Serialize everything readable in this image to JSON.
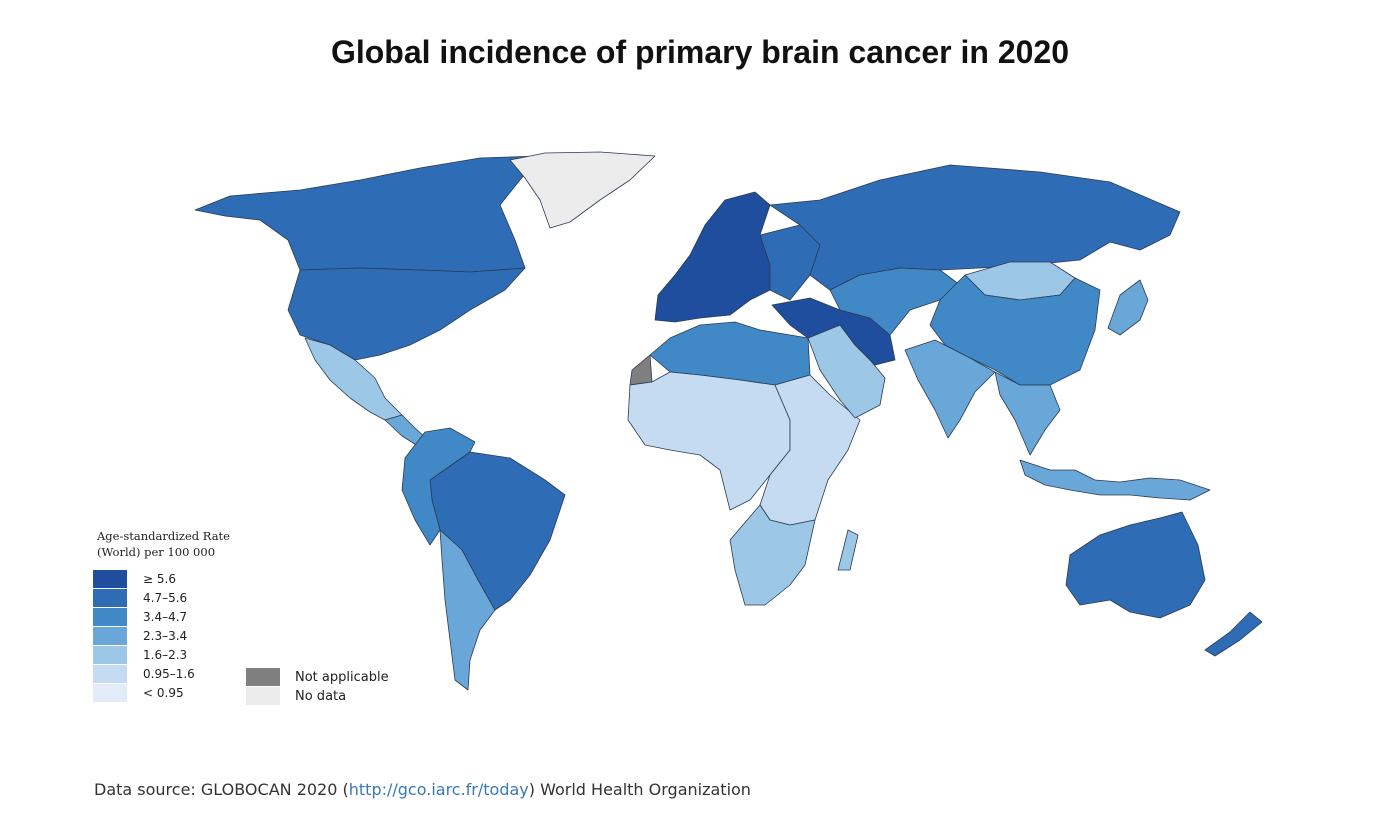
{
  "title": "Global incidence of primary brain cancer in 2020",
  "legend": {
    "title_line1": "Age-standardized Rate",
    "title_line2": "(World) per 100 000",
    "classes": [
      {
        "label": "≥ 5.6",
        "color": "#1f4e9e"
      },
      {
        "label": "4.7–5.6",
        "color": "#2e6db5"
      },
      {
        "label": "3.4–4.7",
        "color": "#4189c6"
      },
      {
        "label": "2.3–3.4",
        "color": "#69a7d8"
      },
      {
        "label": "1.6–2.3",
        "color": "#9dc7e6"
      },
      {
        "label": "0.95–1.6",
        "color": "#c5dbf1"
      },
      {
        "label": "< 0.95",
        "color": "#e2ecf8"
      }
    ],
    "not_applicable": {
      "label": "Not applicable",
      "color": "#7f7f7f"
    },
    "no_data": {
      "label": "No data",
      "color": "#ececec"
    }
  },
  "footer": {
    "prefix": "Data source: GLOBOCAN 2020 (",
    "link": "http://gco.iarc.fr/today",
    "suffix": ") World Health Organization"
  },
  "regions": [
    {
      "name": "Canada",
      "class": 1
    },
    {
      "name": "United States",
      "class": 1
    },
    {
      "name": "Greenland",
      "class": "no_data"
    },
    {
      "name": "Mexico",
      "class": 4
    },
    {
      "name": "Central America",
      "class": 3
    },
    {
      "name": "Brazil",
      "class": 1
    },
    {
      "name": "Andean South America",
      "class": 2
    },
    {
      "name": "Southern Cone",
      "class": 3
    },
    {
      "name": "Western Europe",
      "class": 0
    },
    {
      "name": "Eastern Europe",
      "class": 1
    },
    {
      "name": "Russia",
      "class": 1
    },
    {
      "name": "North Africa",
      "class": 2
    },
    {
      "name": "Western Sahara",
      "class": "not_applicable"
    },
    {
      "name": "West & Central Africa",
      "class": 5
    },
    {
      "name": "East Africa",
      "class": 5
    },
    {
      "name": "Southern Africa",
      "class": 4
    },
    {
      "name": "Middle East",
      "class": 4
    },
    {
      "name": "Iran",
      "class": 0
    },
    {
      "name": "Central Asia",
      "class": 2
    },
    {
      "name": "China",
      "class": 2
    },
    {
      "name": "Mongolia",
      "class": 4
    },
    {
      "name": "India",
      "class": 3
    },
    {
      "name": "Southeast Asia",
      "class": 3
    },
    {
      "name": "Japan",
      "class": 3
    },
    {
      "name": "Indonesia",
      "class": 3
    },
    {
      "name": "Australia",
      "class": 1
    },
    {
      "name": "New Zealand",
      "class": 1
    }
  ]
}
